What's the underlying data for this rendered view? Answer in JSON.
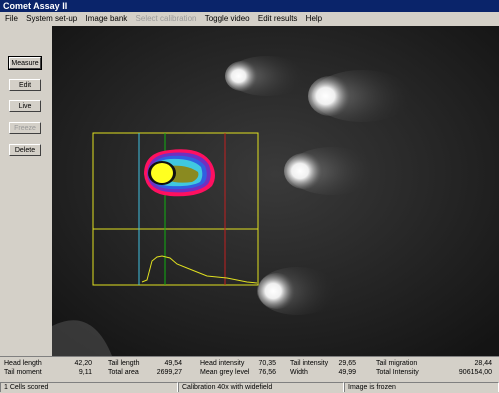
{
  "window": {
    "title": "Comet Assay II"
  },
  "menu": {
    "items": [
      {
        "label": "File",
        "disabled": false
      },
      {
        "label": "System set-up",
        "disabled": false
      },
      {
        "label": "Image bank",
        "disabled": false
      },
      {
        "label": "Select calibration",
        "disabled": true
      },
      {
        "label": "Toggle video",
        "disabled": false
      },
      {
        "label": "Edit results",
        "disabled": false
      },
      {
        "label": "Help",
        "disabled": false
      }
    ]
  },
  "buttons": {
    "measure": "Measure",
    "edit": "Edit",
    "live": "Live",
    "freeze": "Freeze",
    "delete": "Delete"
  },
  "measurements": {
    "head_length": {
      "label": "Head length",
      "value": "42,20"
    },
    "tail_moment": {
      "label": "Tail moment",
      "value": "9,11"
    },
    "tail_length": {
      "label": "Tail length",
      "value": "49,54"
    },
    "total_area": {
      "label": "Total area",
      "value": "2699,27"
    },
    "head_intensity": {
      "label": "Head intensity",
      "value": "70,35"
    },
    "mean_grey_level": {
      "label": "Mean grey level",
      "value": "76,56"
    },
    "tail_intensity": {
      "label": "Tail intensity",
      "value": "29,65"
    },
    "width": {
      "label": "Width",
      "value": "49,99"
    },
    "tail_migration": {
      "label": "Tail migration",
      "value": "28,44"
    },
    "total_intensity": {
      "label": "Total Intensity",
      "value": "906154,00"
    }
  },
  "status": {
    "cells_scored": "1 Cells scored",
    "calibration": "Calibration 40x with widefield",
    "image_state": "Image is frozen"
  },
  "colors": {
    "overlay_box": "#e0e020",
    "head_marker": "#10b010",
    "left_marker": "#40c0e0",
    "right_marker": "#c02020",
    "head_fill": "#ffff20"
  }
}
